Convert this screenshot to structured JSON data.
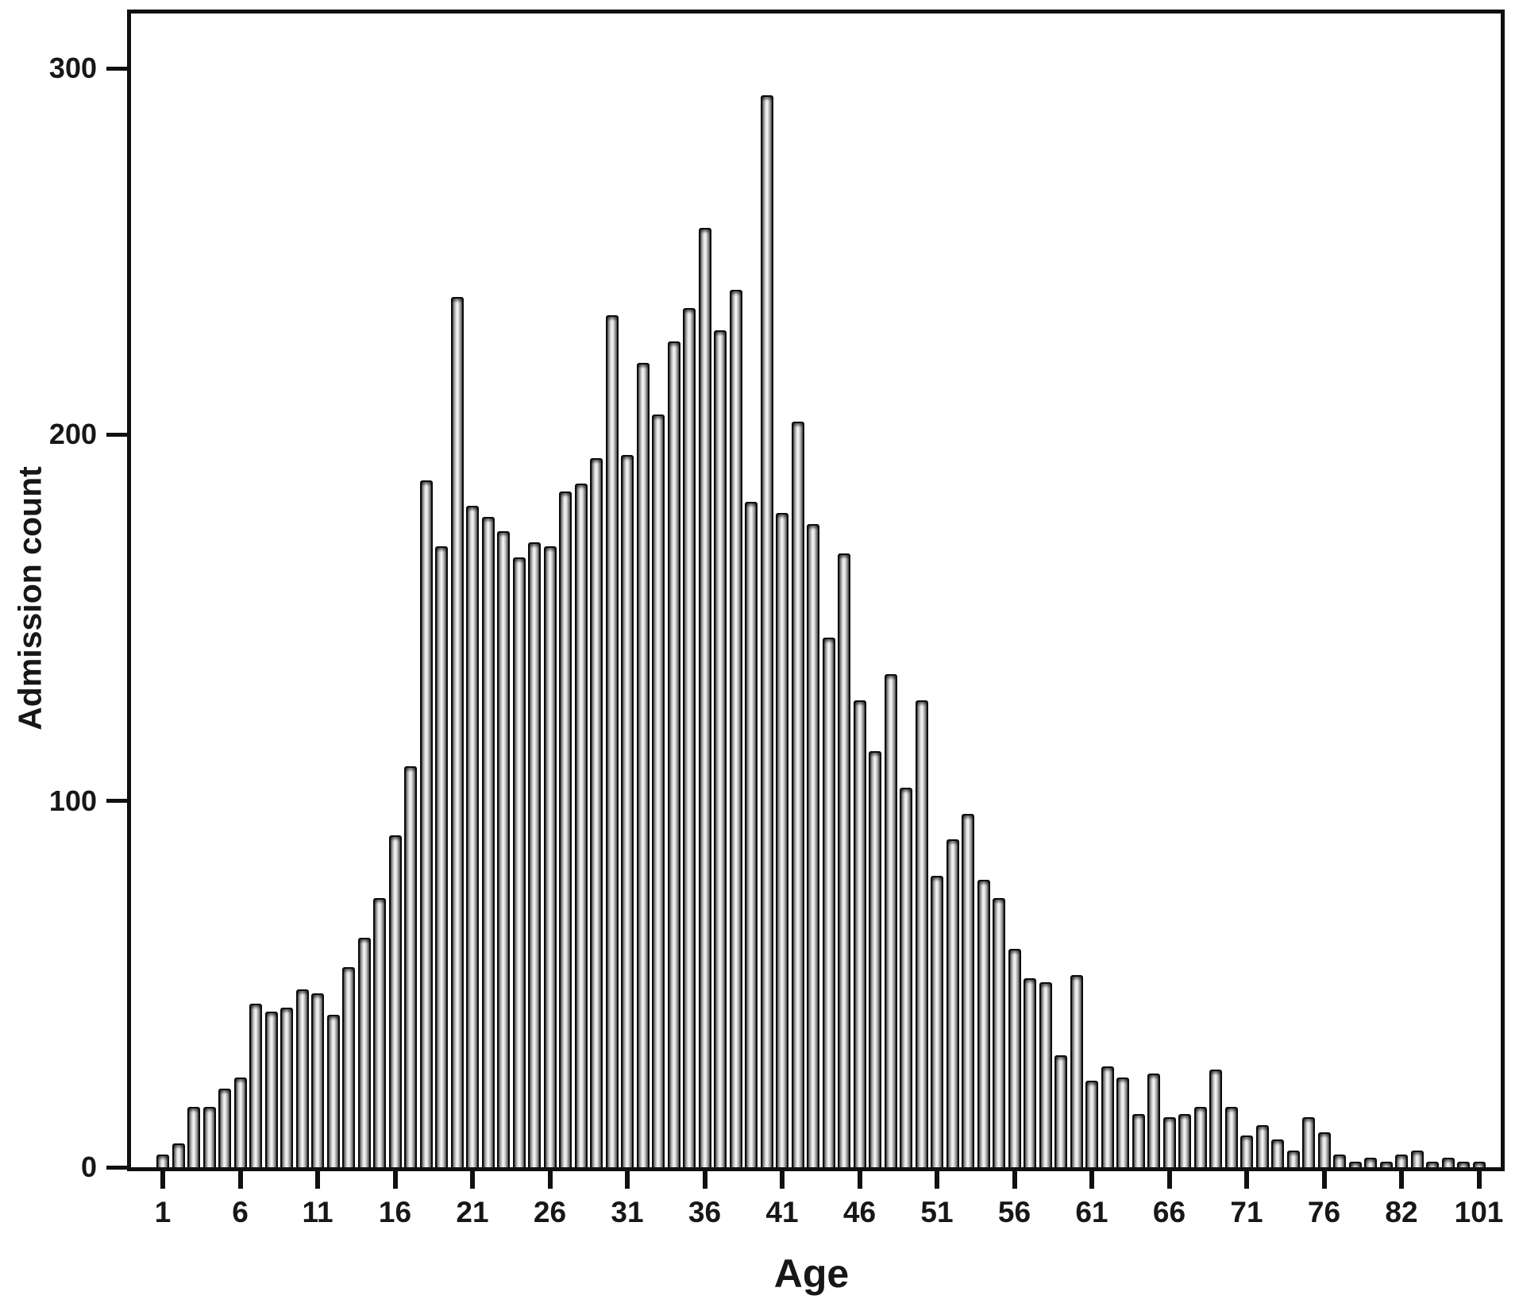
{
  "figure": {
    "background": "#ffffff",
    "frame_color": "#101010",
    "bar_outline": "#0b0b0b",
    "bar_fill_light": "#f6f6f6",
    "bar_fill_dark": "#4f4f4f",
    "text_color": "#171717"
  },
  "chart_data": {
    "type": "bar",
    "title": "",
    "xlabel": "Age",
    "ylabel": "Admission count",
    "ylim": [
      0,
      315
    ],
    "yticks": [
      0,
      100,
      200,
      300
    ],
    "ytick_labels": [
      "0",
      "100",
      "200",
      "300"
    ],
    "grid": false,
    "legend": "none",
    "axis_note": "Categorical age axis: one bar per observed age; every 5th category ticked. Sparse old ages collapse, so tick labels jump 76 -> 82 -> 101.",
    "xtick_indices": [
      0,
      5,
      10,
      15,
      20,
      25,
      30,
      35,
      40,
      45,
      50,
      55,
      60,
      65,
      70,
      75,
      80,
      85
    ],
    "xtick_labels": [
      "1",
      "6",
      "11",
      "16",
      "21",
      "26",
      "31",
      "36",
      "41",
      "46",
      "51",
      "56",
      "61",
      "66",
      "71",
      "76",
      "82",
      "101"
    ],
    "values": [
      4,
      7,
      17,
      17,
      22,
      25,
      45,
      43,
      44,
      49,
      48,
      42,
      55,
      63,
      74,
      91,
      110,
      188,
      170,
      238,
      181,
      178,
      174,
      167,
      171,
      170,
      185,
      187,
      194,
      233,
      195,
      220,
      206,
      226,
      235,
      257,
      229,
      240,
      182,
      293,
      179,
      204,
      176,
      145,
      168,
      128,
      114,
      135,
      104,
      128,
      80,
      90,
      97,
      79,
      74,
      60,
      52,
      51,
      31,
      53,
      24,
      28,
      25,
      15,
      26,
      14,
      15,
      17,
      27,
      17,
      9,
      12,
      8,
      5,
      14,
      10,
      4,
      2,
      3,
      2,
      4,
      5,
      2,
      3,
      2,
      2
    ]
  }
}
